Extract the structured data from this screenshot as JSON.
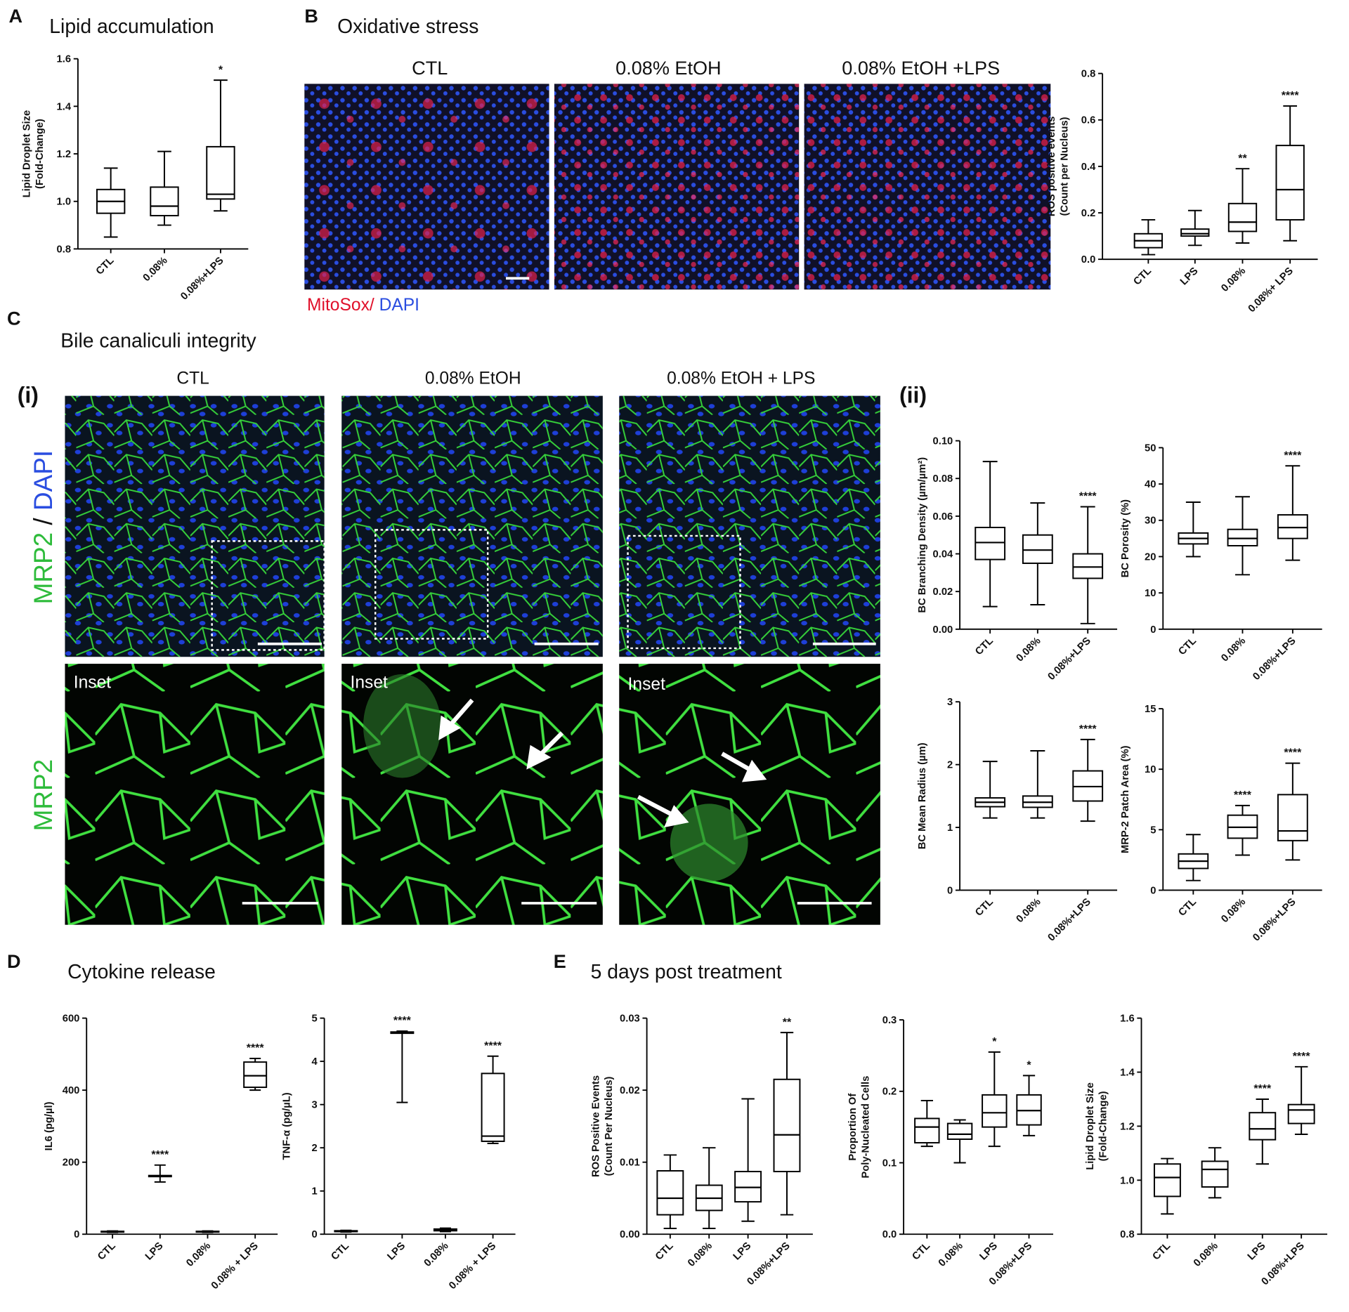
{
  "panels": {
    "a": {
      "letter": "A",
      "title": "Lipid accumulation"
    },
    "b": {
      "letter": "B",
      "title": "Oxidative stress"
    },
    "c": {
      "letter": "C",
      "title": "Bile canaliculi integrity"
    },
    "d": {
      "letter": "D",
      "title": "Cytokine release"
    },
    "e": {
      "letter": "E",
      "title": "5 days post treatment"
    }
  },
  "images": {
    "b_headers": [
      "CTL",
      "0.08% EtOH",
      "0.08% EtOH +LPS"
    ],
    "b_stain_red": "MitoSox/",
    "b_stain_blue": "DAPI",
    "c_headers": [
      "CTL",
      "0.08% EtOH",
      "0.08% EtOH + LPS"
    ],
    "c_left": "(i)",
    "c_right": "(ii)",
    "c_top_stain_green": "MRP2",
    "c_top_stain_sep": "/",
    "c_top_stain_blue": "DAPI",
    "c_bottom_stain": "MRP2",
    "inset": "Inset"
  },
  "chart_data": [
    {
      "type": "box",
      "ylabel": [
        "Lipid Droplet Size",
        "(Fold-Change)"
      ],
      "categories": [
        "CTL",
        "0.08%",
        "0.08%+LPS"
      ],
      "color": "#000000",
      "ylim": [
        0.8,
        1.6
      ],
      "yticks": [
        0.8,
        {
          "value": 1.0,
          "label": "1.0"
        },
        1.2,
        1.4,
        1.6
      ],
      "boxes": [
        {
          "min": 0.85,
          "q1": 0.95,
          "median": 1.0,
          "q3": 1.05,
          "max": 1.14
        },
        {
          "min": 0.9,
          "q1": 0.94,
          "median": 0.98,
          "q3": 1.06,
          "max": 1.21
        },
        {
          "min": 0.96,
          "q1": 1.01,
          "median": 1.03,
          "q3": 1.23,
          "max": 1.51
        }
      ],
      "annotations": [
        null,
        null,
        "*"
      ]
    },
    {
      "type": "box",
      "ylabel": [
        "ROS positive events",
        "(Count per Nucleus)"
      ],
      "categories": [
        "CTL",
        "LPS",
        "0.08%",
        "0.08%+ LPS"
      ],
      "color": "#000000",
      "ylim": [
        0,
        0.8
      ],
      "yticks": [
        {
          "value": 0,
          "label": "0.0"
        },
        0.2,
        0.4,
        0.6,
        0.8
      ],
      "boxes": [
        {
          "min": 0.02,
          "q1": 0.05,
          "median": 0.08,
          "q3": 0.11,
          "max": 0.17
        },
        {
          "min": 0.06,
          "q1": 0.1,
          "median": 0.11,
          "q3": 0.13,
          "max": 0.21
        },
        {
          "min": 0.07,
          "q1": 0.12,
          "median": 0.16,
          "q3": 0.24,
          "max": 0.39
        },
        {
          "min": 0.08,
          "q1": 0.17,
          "median": 0.3,
          "q3": 0.49,
          "max": 0.66
        }
      ],
      "annotations": [
        null,
        null,
        "**",
        "****"
      ]
    },
    {
      "type": "box",
      "ylabel": [
        "BC Branching Density (µm/µm²)"
      ],
      "categories": [
        "CTL",
        "0.08%",
        "0.08%+LPS"
      ],
      "color": "#000000",
      "ylim": [
        0,
        0.1
      ],
      "yticks": [
        {
          "value": 0,
          "label": "0.00"
        },
        0.02,
        0.04,
        0.06,
        0.08,
        {
          "value": 0.1,
          "label": "0.10"
        }
      ],
      "boxes": [
        {
          "min": 0.012,
          "q1": 0.037,
          "median": 0.046,
          "q3": 0.054,
          "max": 0.089
        },
        {
          "min": 0.013,
          "q1": 0.035,
          "median": 0.042,
          "q3": 0.05,
          "max": 0.067
        },
        {
          "min": 0.003,
          "q1": 0.027,
          "median": 0.033,
          "q3": 0.04,
          "max": 0.065
        }
      ],
      "annotations": [
        null,
        null,
        "****"
      ]
    },
    {
      "type": "box",
      "ylabel": [
        "BC Porosity (%)"
      ],
      "categories": [
        "CTL",
        "0.08%",
        "0.08%+LPS"
      ],
      "color": "#000000",
      "ylim": [
        0,
        50
      ],
      "yticks": [
        0,
        10,
        20,
        30,
        40,
        50
      ],
      "boxes": [
        {
          "min": 20,
          "q1": 23.5,
          "median": 25,
          "q3": 26.5,
          "max": 35
        },
        {
          "min": 15,
          "q1": 23,
          "median": 25,
          "q3": 27.5,
          "max": 36.5
        },
        {
          "min": 19,
          "q1": 25,
          "median": 28,
          "q3": 31.5,
          "max": 45
        }
      ],
      "annotations": [
        null,
        null,
        "****"
      ]
    },
    {
      "type": "box",
      "ylabel": [
        "BC Mean Radius (µm)"
      ],
      "categories": [
        "CTL",
        "0.08%",
        "0.08%+LPS"
      ],
      "color": "#000000",
      "ylim": [
        0,
        3
      ],
      "yticks": [
        0,
        1,
        2,
        3
      ],
      "boxes": [
        {
          "min": 1.15,
          "q1": 1.33,
          "median": 1.4,
          "q3": 1.47,
          "max": 2.05
        },
        {
          "min": 1.15,
          "q1": 1.32,
          "median": 1.4,
          "q3": 1.5,
          "max": 2.22
        },
        {
          "min": 1.1,
          "q1": 1.42,
          "median": 1.65,
          "q3": 1.9,
          "max": 2.4
        }
      ],
      "annotations": [
        null,
        null,
        "****"
      ]
    },
    {
      "type": "box",
      "ylabel": [
        "MRP-2 Patch Area (%)"
      ],
      "categories": [
        "CTL",
        "0.08%",
        "0.08%+LPS"
      ],
      "color": "#000000",
      "ylim": [
        0,
        15
      ],
      "yticks": [
        0,
        5,
        10,
        15
      ],
      "boxes": [
        {
          "min": 0.8,
          "q1": 1.8,
          "median": 2.4,
          "q3": 3.0,
          "max": 4.6
        },
        {
          "min": 2.9,
          "q1": 4.3,
          "median": 5.2,
          "q3": 6.2,
          "max": 7.0
        },
        {
          "min": 2.5,
          "q1": 4.1,
          "median": 4.9,
          "q3": 7.9,
          "max": 10.5
        }
      ],
      "annotations": [
        null,
        "****",
        "****"
      ]
    },
    {
      "type": "box",
      "ylabel": [
        "IL6 (pg/µl)"
      ],
      "categories": [
        "CTL",
        "LPS",
        "0.08%",
        "0.08% + LPS"
      ],
      "color": "#000000",
      "ylim": [
        0,
        600
      ],
      "yticks": [
        0,
        200,
        400,
        600
      ],
      "boxes": [
        {
          "min": 5,
          "q1": 6,
          "median": 7,
          "q3": 8,
          "max": 9
        },
        {
          "min": 145,
          "q1": 160,
          "median": 162,
          "q3": 163,
          "max": 192
        },
        {
          "min": 5,
          "q1": 6,
          "median": 7,
          "q3": 8,
          "max": 9
        },
        {
          "min": 400,
          "q1": 408,
          "median": 440,
          "q3": 478,
          "max": 488
        }
      ],
      "annotations": [
        null,
        "****",
        null,
        "****"
      ]
    },
    {
      "type": "box",
      "ylabel": [
        "TNF-α (pg/µL)"
      ],
      "categories": [
        "CTL",
        "LPS",
        "0.08%",
        "0.08% + LPS"
      ],
      "color": "#000000",
      "ylim": [
        0,
        5
      ],
      "yticks": [
        0,
        1,
        2,
        3,
        4,
        5
      ],
      "boxes": [
        {
          "min": 0.05,
          "q1": 0.06,
          "median": 0.07,
          "q3": 0.08,
          "max": 0.09
        },
        {
          "min": 3.05,
          "q1": 4.65,
          "median": 4.67,
          "q3": 4.68,
          "max": 4.7
        },
        {
          "min": 0.06,
          "q1": 0.08,
          "median": 0.1,
          "q3": 0.12,
          "max": 0.14
        },
        {
          "min": 2.1,
          "q1": 2.15,
          "median": 2.27,
          "q3": 3.72,
          "max": 4.12
        }
      ],
      "annotations": [
        null,
        "****",
        null,
        "****"
      ]
    },
    {
      "type": "box",
      "ylabel": [
        "ROS Positive Events",
        "(Count Per Nucleus)"
      ],
      "categories": [
        "CTL",
        "0.08%",
        "LPS",
        "0.08%+LPS"
      ],
      "color": "#000000",
      "ylim": [
        0,
        0.03
      ],
      "yticks": [
        {
          "value": 0,
          "label": "0.00"
        },
        0.01,
        0.02,
        0.03
      ],
      "boxes": [
        {
          "min": 0.0008,
          "q1": 0.0027,
          "median": 0.005,
          "q3": 0.0088,
          "max": 0.011
        },
        {
          "min": 0.0008,
          "q1": 0.0033,
          "median": 0.005,
          "q3": 0.0068,
          "max": 0.012
        },
        {
          "min": 0.0018,
          "q1": 0.0045,
          "median": 0.0065,
          "q3": 0.0087,
          "max": 0.0188
        },
        {
          "min": 0.0027,
          "q1": 0.0087,
          "median": 0.0138,
          "q3": 0.0215,
          "max": 0.028
        }
      ],
      "annotations": [
        null,
        null,
        null,
        "**"
      ]
    },
    {
      "type": "box",
      "ylabel": [
        "Proportion Of",
        "Poly-Nucleated Cells"
      ],
      "categories": [
        "CTL",
        "0.08%",
        "LPS",
        "0.08%+LPS"
      ],
      "color": "#000000",
      "ylim": [
        0,
        0.3
      ],
      "yticks": [
        {
          "value": 0,
          "label": "0.0"
        },
        0.1,
        0.2,
        0.3
      ],
      "boxes": [
        {
          "min": 0.123,
          "q1": 0.128,
          "median": 0.15,
          "q3": 0.162,
          "max": 0.187
        },
        {
          "min": 0.1,
          "q1": 0.133,
          "median": 0.14,
          "q3": 0.155,
          "max": 0.16
        },
        {
          "min": 0.123,
          "q1": 0.15,
          "median": 0.17,
          "q3": 0.195,
          "max": 0.255
        },
        {
          "min": 0.138,
          "q1": 0.153,
          "median": 0.173,
          "q3": 0.195,
          "max": 0.222
        }
      ],
      "annotations": [
        null,
        null,
        "*",
        "*"
      ]
    },
    {
      "type": "box",
      "ylabel": [
        "Lipid Droplet Size",
        "(Fold-Change)"
      ],
      "categories": [
        "CTL",
        "0.08%",
        "LPS",
        "0.08%+LPS"
      ],
      "color": "#000000",
      "ylim": [
        0.8,
        1.6
      ],
      "yticks": [
        0.8,
        {
          "value": 1.0,
          "label": "1.0"
        },
        1.2,
        1.4,
        1.6
      ],
      "boxes": [
        {
          "min": 0.875,
          "q1": 0.94,
          "median": 1.01,
          "q3": 1.06,
          "max": 1.08
        },
        {
          "min": 0.935,
          "q1": 0.975,
          "median": 1.04,
          "q3": 1.07,
          "max": 1.12
        },
        {
          "min": 1.06,
          "q1": 1.15,
          "median": 1.19,
          "q3": 1.25,
          "max": 1.3
        },
        {
          "min": 1.17,
          "q1": 1.21,
          "median": 1.26,
          "q3": 1.28,
          "max": 1.42
        }
      ],
      "annotations": [
        null,
        null,
        "****",
        "****"
      ]
    }
  ]
}
